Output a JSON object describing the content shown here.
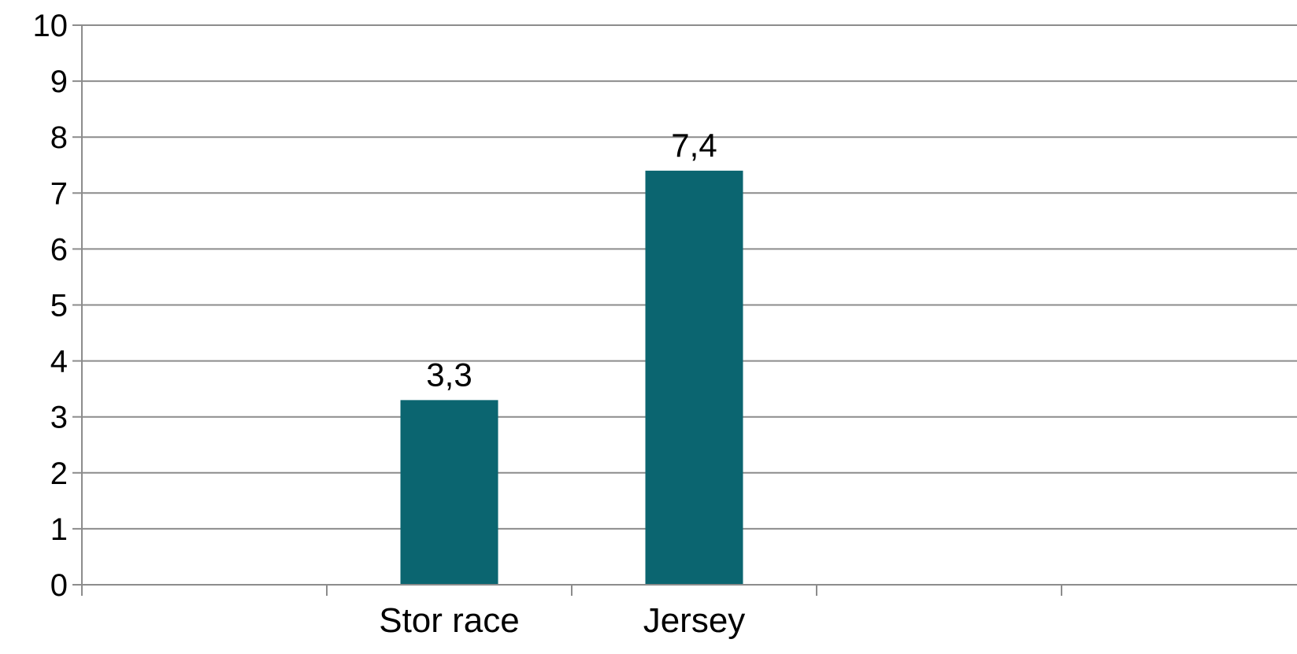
{
  "chart_data": {
    "type": "bar",
    "categories": [
      "",
      "Stor race",
      "Jersey",
      "",
      ""
    ],
    "values": [
      null,
      3.3,
      7.4,
      null,
      null
    ],
    "data_labels": [
      "",
      "3,3",
      "7,4",
      "",
      ""
    ],
    "y_ticks": [
      "0",
      "1",
      "2",
      "3",
      "4",
      "5",
      "6",
      "7",
      "8",
      "9",
      "10"
    ],
    "ylim": [
      0,
      10
    ],
    "grid": true,
    "bar_color": "#0b6570",
    "grid_color": "#8c8c8c",
    "title": "",
    "xlabel": "",
    "ylabel": ""
  }
}
